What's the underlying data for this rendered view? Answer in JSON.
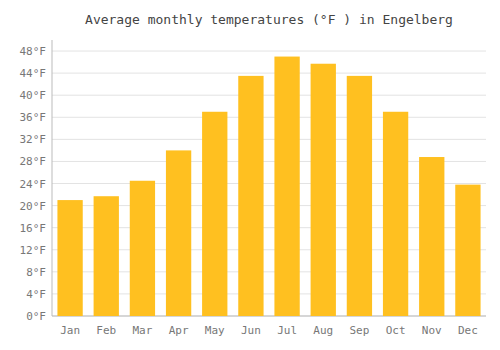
{
  "chart_data": {
    "type": "bar",
    "title": "Average monthly temperatures (°F ) in Engelberg",
    "categories": [
      "Jan",
      "Feb",
      "Mar",
      "Apr",
      "May",
      "Jun",
      "Jul",
      "Aug",
      "Sep",
      "Oct",
      "Nov",
      "Dec"
    ],
    "values": [
      21.0,
      21.7,
      24.5,
      30.0,
      37.0,
      43.5,
      47.0,
      45.7,
      43.5,
      37.0,
      28.8,
      23.8
    ],
    "color": "#FFC020",
    "ylim": [
      0,
      50
    ],
    "yticks": [
      {
        "value": 0,
        "label": "0°F"
      },
      {
        "value": 4,
        "label": "4°F"
      },
      {
        "value": 8,
        "label": "8°F"
      },
      {
        "value": 12,
        "label": "12°F"
      },
      {
        "value": 16,
        "label": "16°F"
      },
      {
        "value": 20,
        "label": "20°F"
      },
      {
        "value": 24,
        "label": "24°F"
      },
      {
        "value": 28,
        "label": "28°F"
      },
      {
        "value": 32,
        "label": "32°F"
      },
      {
        "value": 36,
        "label": "36°F"
      },
      {
        "value": 40,
        "label": "40°F"
      },
      {
        "value": 44,
        "label": "44°F"
      },
      {
        "value": 48,
        "label": "48°F"
      }
    ],
    "grid": true
  }
}
